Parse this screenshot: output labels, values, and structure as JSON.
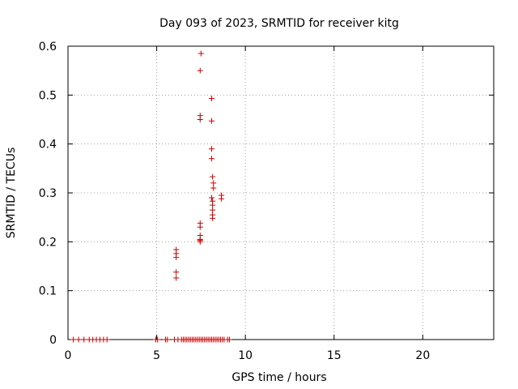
{
  "chart_data": {
    "type": "scatter",
    "title": "Day 093 of 2023, SRMTID for receiver kitg",
    "xlabel": "GPS time / hours",
    "ylabel": "SRMTID / TECUs",
    "xlim": [
      0,
      24
    ],
    "ylim": [
      0,
      0.6
    ],
    "x_ticks": [
      0,
      5,
      10,
      15,
      20
    ],
    "y_ticks": [
      0,
      0.1,
      0.2,
      0.3,
      0.4,
      0.5,
      0.6
    ],
    "x_tick_labels": [
      "0",
      "5",
      "10",
      "15",
      "20"
    ],
    "y_tick_labels": [
      "0",
      "0.1",
      "0.2",
      "0.3",
      "0.4",
      "0.5",
      "0.6"
    ],
    "grid": true,
    "marker": "+",
    "colors": {
      "series": "#cc0000",
      "grid": "#a0a0a0"
    },
    "series": [
      {
        "name": "SRMTID",
        "points": [
          [
            0.3,
            0
          ],
          [
            0.6,
            0
          ],
          [
            0.9,
            0
          ],
          [
            1.2,
            0
          ],
          [
            1.4,
            0
          ],
          [
            1.6,
            0
          ],
          [
            1.8,
            0
          ],
          [
            2.0,
            0
          ],
          [
            2.2,
            0
          ],
          [
            4.95,
            0
          ],
          [
            5.05,
            0
          ],
          [
            5.5,
            0
          ],
          [
            5.6,
            0
          ],
          [
            6.0,
            0
          ],
          [
            6.2,
            0
          ],
          [
            6.4,
            0
          ],
          [
            6.5,
            0
          ],
          [
            6.6,
            0
          ],
          [
            6.7,
            0
          ],
          [
            6.8,
            0
          ],
          [
            6.9,
            0
          ],
          [
            7.0,
            0
          ],
          [
            7.1,
            0
          ],
          [
            7.2,
            0
          ],
          [
            7.3,
            0
          ],
          [
            7.4,
            0
          ],
          [
            7.5,
            0
          ],
          [
            7.6,
            0
          ],
          [
            7.7,
            0
          ],
          [
            7.8,
            0
          ],
          [
            7.9,
            0
          ],
          [
            8.0,
            0
          ],
          [
            8.1,
            0
          ],
          [
            8.2,
            0
          ],
          [
            8.3,
            0
          ],
          [
            8.4,
            0
          ],
          [
            8.5,
            0
          ],
          [
            8.6,
            0
          ],
          [
            8.7,
            0
          ],
          [
            8.8,
            0
          ],
          [
            9.0,
            0
          ],
          [
            9.1,
            0
          ],
          [
            6.1,
            0.126
          ],
          [
            6.1,
            0.138
          ],
          [
            6.1,
            0.168
          ],
          [
            6.1,
            0.176
          ],
          [
            6.1,
            0.184
          ],
          [
            7.45,
            0.2
          ],
          [
            7.45,
            0.203
          ],
          [
            7.45,
            0.205
          ],
          [
            7.45,
            0.213
          ],
          [
            7.45,
            0.23
          ],
          [
            7.45,
            0.238
          ],
          [
            7.45,
            0.45
          ],
          [
            7.45,
            0.458
          ],
          [
            7.45,
            0.55
          ],
          [
            7.5,
            0.585
          ],
          [
            8.1,
            0.493
          ],
          [
            8.1,
            0.447
          ],
          [
            8.1,
            0.39
          ],
          [
            8.1,
            0.37
          ],
          [
            8.15,
            0.333
          ],
          [
            8.2,
            0.32
          ],
          [
            8.2,
            0.31
          ],
          [
            8.1,
            0.29
          ],
          [
            8.15,
            0.283
          ],
          [
            8.15,
            0.275
          ],
          [
            8.15,
            0.265
          ],
          [
            8.15,
            0.255
          ],
          [
            8.15,
            0.248
          ],
          [
            8.65,
            0.288
          ],
          [
            8.65,
            0.295
          ]
        ]
      }
    ]
  }
}
